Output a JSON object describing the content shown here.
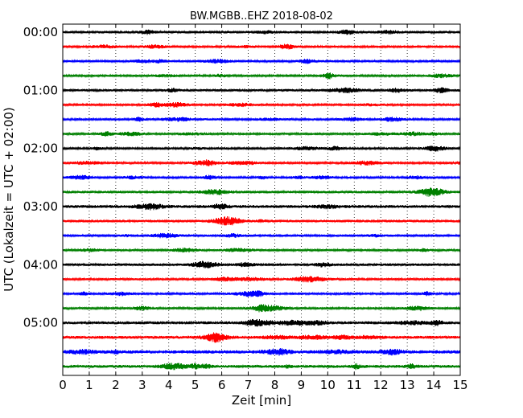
{
  "chart_data": {
    "type": "line",
    "title": "BW.MGBB..EHZ 2018-08-02",
    "xlabel": "Zeit  [min]",
    "ylabel": "UTC (Lokalzeit = UTC + 02:00)",
    "xlim": [
      0,
      15
    ],
    "x_ticks": [
      "0",
      "1",
      "2",
      "3",
      "4",
      "5",
      "6",
      "7",
      "8",
      "9",
      "10",
      "11",
      "12",
      "13",
      "14",
      "15"
    ],
    "y_ticks": [
      "00:00",
      "01:00",
      "02:00",
      "03:00",
      "04:00",
      "05:00"
    ],
    "vertical_grid": "dotted",
    "trace_interval_minutes": 15,
    "trace_colors": [
      "#000000",
      "#ff0000",
      "#0000ff",
      "#008000"
    ],
    "traces": [
      {
        "start": "00:00",
        "color": "#000000",
        "amplitude": 3.5
      },
      {
        "start": "00:15",
        "color": "#ff0000",
        "amplitude": 3.0
      },
      {
        "start": "00:30",
        "color": "#0000ff",
        "amplitude": 3.0
      },
      {
        "start": "00:45",
        "color": "#008000",
        "amplitude": 2.8
      },
      {
        "start": "01:00",
        "color": "#000000",
        "amplitude": 3.5
      },
      {
        "start": "01:15",
        "color": "#ff0000",
        "amplitude": 2.8
      },
      {
        "start": "01:30",
        "color": "#0000ff",
        "amplitude": 3.0
      },
      {
        "start": "01:45",
        "color": "#008000",
        "amplitude": 3.0
      },
      {
        "start": "02:00",
        "color": "#000000",
        "amplitude": 3.0
      },
      {
        "start": "02:15",
        "color": "#ff0000",
        "amplitude": 2.8
      },
      {
        "start": "02:30",
        "color": "#0000ff",
        "amplitude": 2.8
      },
      {
        "start": "02:45",
        "color": "#008000",
        "amplitude": 3.5
      },
      {
        "start": "03:00",
        "color": "#000000",
        "amplitude": 4.0
      },
      {
        "start": "03:15",
        "color": "#ff0000",
        "amplitude": 3.5
      },
      {
        "start": "03:30",
        "color": "#0000ff",
        "amplitude": 3.0
      },
      {
        "start": "03:45",
        "color": "#008000",
        "amplitude": 3.0
      },
      {
        "start": "04:00",
        "color": "#000000",
        "amplitude": 3.5
      },
      {
        "start": "04:15",
        "color": "#ff0000",
        "amplitude": 3.0
      },
      {
        "start": "04:30",
        "color": "#0000ff",
        "amplitude": 3.0
      },
      {
        "start": "04:45",
        "color": "#008000",
        "amplitude": 3.0
      },
      {
        "start": "05:00",
        "color": "#000000",
        "amplitude": 4.0
      },
      {
        "start": "05:15",
        "color": "#ff0000",
        "amplitude": 4.0
      },
      {
        "start": "05:30",
        "color": "#0000ff",
        "amplitude": 4.5
      },
      {
        "start": "05:45",
        "color": "#008000",
        "amplitude": 4.0
      }
    ]
  }
}
